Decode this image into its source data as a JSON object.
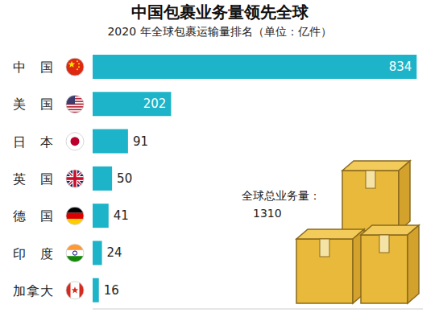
{
  "chart_data": {
    "type": "bar",
    "title": "中国包裹业务量领先全球",
    "subtitle": "2020 年全球包裹运输量排名（单位：亿件）",
    "categories": [
      "中国",
      "美国",
      "日本",
      "英国",
      "德国",
      "印度",
      "加拿大"
    ],
    "values": [
      834,
      202,
      91,
      50,
      41,
      24,
      16
    ],
    "color": "#1db3c8",
    "orientation": "horizontal",
    "data_labels": true,
    "tick_labels": "y",
    "xlim": [
      0,
      850
    ],
    "xticks": [],
    "annotations": [
      "全球总业务量：",
      "1310"
    ]
  }
}
